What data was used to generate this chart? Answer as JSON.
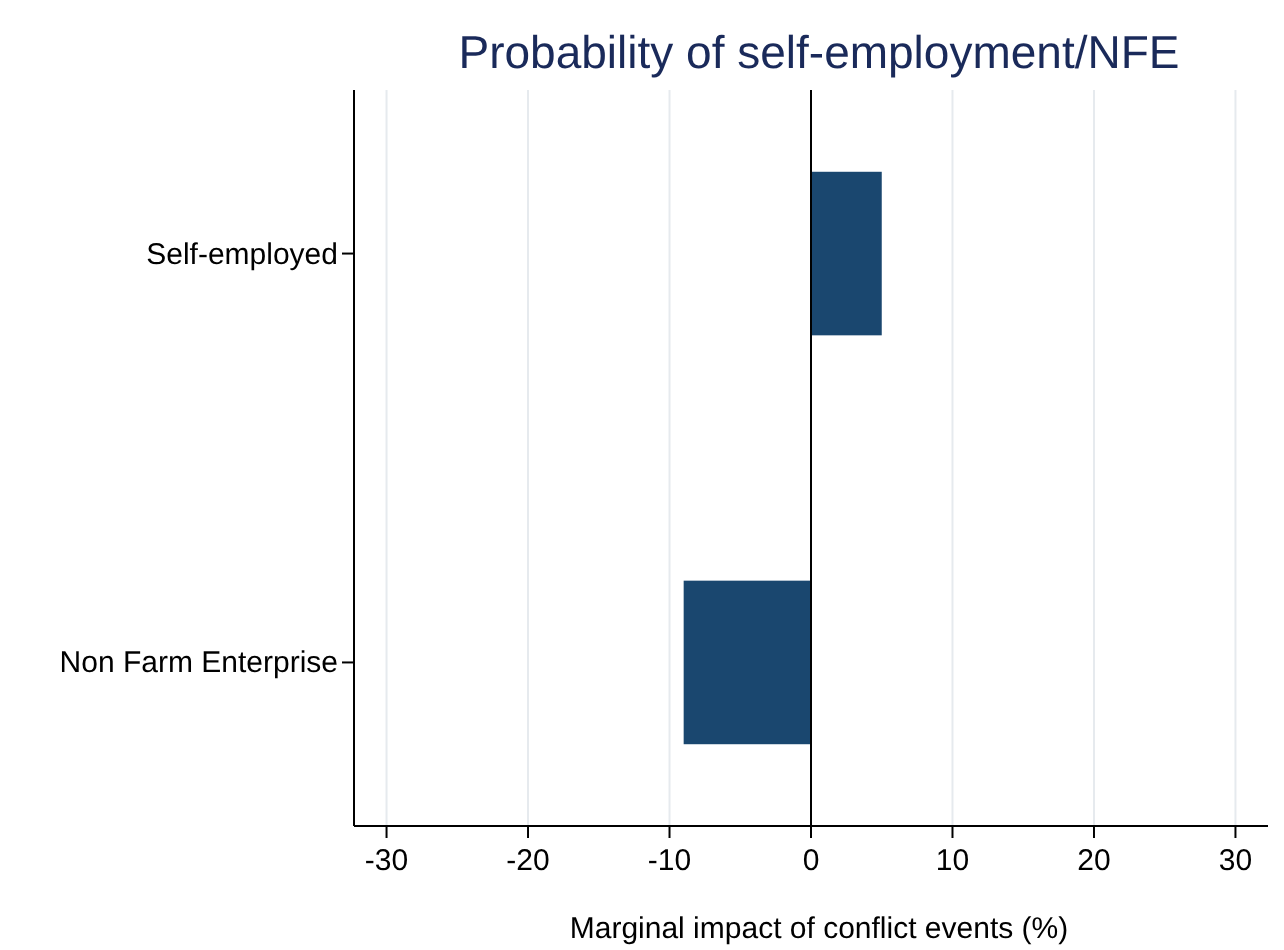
{
  "chart_data": {
    "type": "bar",
    "orientation": "horizontal",
    "title": "Probability of self-employment/NFE",
    "xlabel": "Marginal impact of conflict events (%)",
    "categories": [
      "Self-employed",
      "Non Farm Enterprise"
    ],
    "values": [
      5,
      -9
    ],
    "color": "#1a476f",
    "xlim": [
      -32.3,
      32.3
    ],
    "xticks": [
      -30,
      -20,
      -10,
      0,
      10,
      20,
      30
    ],
    "grid": "x",
    "ref_lines": [
      {
        "axis": "x",
        "value": 0,
        "color": "#000000"
      }
    ]
  }
}
